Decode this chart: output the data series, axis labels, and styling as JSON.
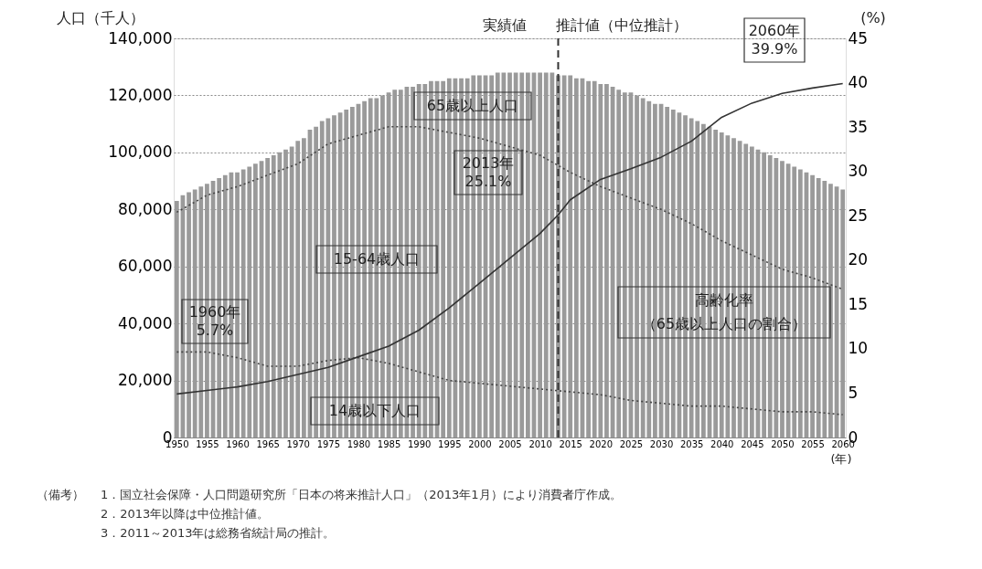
{
  "chart_data": {
    "type": "bar",
    "ylabel": "人口（千人）",
    "y2label": "(%)",
    "xlabel": "(年)",
    "x": [
      1950,
      1951,
      1952,
      1953,
      1954,
      1955,
      1956,
      1957,
      1958,
      1959,
      1960,
      1961,
      1962,
      1963,
      1964,
      1965,
      1966,
      1967,
      1968,
      1969,
      1970,
      1971,
      1972,
      1973,
      1974,
      1975,
      1976,
      1977,
      1978,
      1979,
      1980,
      1981,
      1982,
      1983,
      1984,
      1985,
      1986,
      1987,
      1988,
      1989,
      1990,
      1991,
      1992,
      1993,
      1994,
      1995,
      1996,
      1997,
      1998,
      1999,
      2000,
      2001,
      2002,
      2003,
      2004,
      2005,
      2006,
      2007,
      2008,
      2009,
      2010,
      2011,
      2012,
      2013,
      2014,
      2015,
      2016,
      2017,
      2018,
      2019,
      2020,
      2021,
      2022,
      2023,
      2024,
      2025,
      2026,
      2027,
      2028,
      2029,
      2030,
      2031,
      2032,
      2033,
      2034,
      2035,
      2036,
      2037,
      2038,
      2039,
      2040,
      2041,
      2042,
      2043,
      2044,
      2045,
      2046,
      2047,
      2048,
      2049,
      2050,
      2051,
      2052,
      2053,
      2054,
      2055,
      2056,
      2057,
      2058,
      2059,
      2060
    ],
    "series": [
      {
        "color": "#9a9a9a",
        "values": [
          83000,
          85000,
          86000,
          87000,
          88000,
          89000,
          90000,
          91000,
          92000,
          93000,
          93000,
          94000,
          95000,
          96000,
          97000,
          98000,
          99000,
          100000,
          101000,
          102000,
          104000,
          105000,
          108000,
          109000,
          111000,
          112000,
          113000,
          114000,
          115000,
          116000,
          117000,
          118000,
          119000,
          119000,
          120000,
          121000,
          122000,
          122000,
          123000,
          123000,
          124000,
          124000,
          125000,
          125000,
          125000,
          126000,
          126000,
          126000,
          126000,
          127000,
          127000,
          127000,
          127000,
          128000,
          128000,
          128000,
          128000,
          128000,
          128000,
          128000,
          128000,
          128000,
          128000,
          127000,
          127000,
          127000,
          126000,
          126000,
          125000,
          125000,
          124000,
          124000,
          123000,
          122000,
          121000,
          121000,
          120000,
          119000,
          118000,
          117000,
          117000,
          116000,
          115000,
          114000,
          113000,
          112000,
          111000,
          110000,
          109000,
          108000,
          107000,
          106000,
          105000,
          104000,
          103000,
          102000,
          101000,
          100000,
          99000,
          98000,
          97000,
          96000,
          95000,
          94000,
          93000,
          92000,
          91000,
          90000,
          89000,
          88000,
          87000
        ]
      },
      {
        "type": "line",
        "color": "#444444",
        "line_style": "dotted",
        "x": [
          1950,
          1955,
          1960,
          1965,
          1970,
          1975,
          1980,
          1985,
          1990,
          1995,
          2000,
          2005,
          2010,
          2015,
          2020,
          2025,
          2030,
          2035,
          2040,
          2045,
          2050,
          2055,
          2060
        ],
        "values": [
          79000,
          85000,
          88000,
          92000,
          96000,
          103000,
          106000,
          109000,
          109000,
          107000,
          105000,
          102000,
          99000,
          93000,
          88000,
          84000,
          80000,
          75000,
          69000,
          64000,
          59000,
          56000,
          52000
        ]
      },
      {
        "type": "line",
        "color": "#444444",
        "line_style": "dotted",
        "x": [
          1950,
          1955,
          1960,
          1965,
          1970,
          1975,
          1980,
          1985,
          1990,
          1995,
          2000,
          2005,
          2010,
          2015,
          2020,
          2025,
          2030,
          2035,
          2040,
          2045,
          2050,
          2055,
          2060
        ],
        "values": [
          30000,
          30000,
          28000,
          25000,
          25000,
          27000,
          28000,
          26000,
          23000,
          20000,
          19000,
          18000,
          17000,
          16000,
          15000,
          13000,
          12000,
          11000,
          11000,
          10000,
          9000,
          9000,
          8000
        ]
      },
      {
        "type": "line",
        "axis": "y2",
        "color": "#333333",
        "line_style": "solid",
        "x": [
          1950,
          1955,
          1960,
          1965,
          1970,
          1975,
          1980,
          1985,
          1990,
          1995,
          2000,
          2005,
          2010,
          2013,
          2015,
          2020,
          2025,
          2030,
          2035,
          2040,
          2045,
          2050,
          2055,
          2060
        ],
        "values": [
          4.9,
          5.3,
          5.7,
          6.3,
          7.1,
          7.9,
          9.1,
          10.3,
          12.1,
          14.6,
          17.4,
          20.2,
          23.0,
          25.1,
          26.8,
          29.1,
          30.3,
          31.6,
          33.4,
          36.1,
          37.7,
          38.8,
          39.4,
          39.9
        ]
      }
    ],
    "xlim": [
      1949.5,
      2060.5
    ],
    "xticks": [
      1950,
      1955,
      1960,
      1965,
      1970,
      1975,
      1980,
      1985,
      1990,
      1995,
      2000,
      2005,
      2010,
      2015,
      2020,
      2025,
      2030,
      2035,
      2040,
      2045,
      2050,
      2055,
      2060
    ],
    "ylim": [
      0,
      140000
    ],
    "yticks": [
      {
        "value": 0,
        "label": "0"
      },
      {
        "value": 20000,
        "label": "20,000"
      },
      {
        "value": 40000,
        "label": "40,000"
      },
      {
        "value": 60000,
        "label": "60,000"
      },
      {
        "value": 80000,
        "label": "80,000"
      },
      {
        "value": 100000,
        "label": "100,000"
      },
      {
        "value": 120000,
        "label": "120,000"
      },
      {
        "value": 140000,
        "label": "140,000"
      }
    ],
    "y2lim": [
      0,
      45
    ],
    "y2ticks": [
      0,
      5,
      10,
      15,
      20,
      25,
      30,
      35,
      40,
      45
    ],
    "grid": "y",
    "ref_lines": [
      {
        "axis": "x",
        "value": 2013,
        "color": "#333333",
        "line_style": "dashed"
      }
    ],
    "annotations": [
      "実績値",
      "推計値（中位推計）",
      "2060年\n39.9%",
      "65歳以上人口",
      "2013年\n25.1%",
      "15-64歳人口",
      "高齢化率",
      "（65歳以上人口の割合）",
      "1960年\n5.7%",
      "14歳以下人口",
      "（備考）",
      "1．国立社会保障・人口問題研究所「日本の将来推計人口」（2013年1月）により消費者庁作成。",
      "2．2013年以降は中位推計値。",
      "3．2011～2013年は総務省統計局の推計。"
    ]
  }
}
